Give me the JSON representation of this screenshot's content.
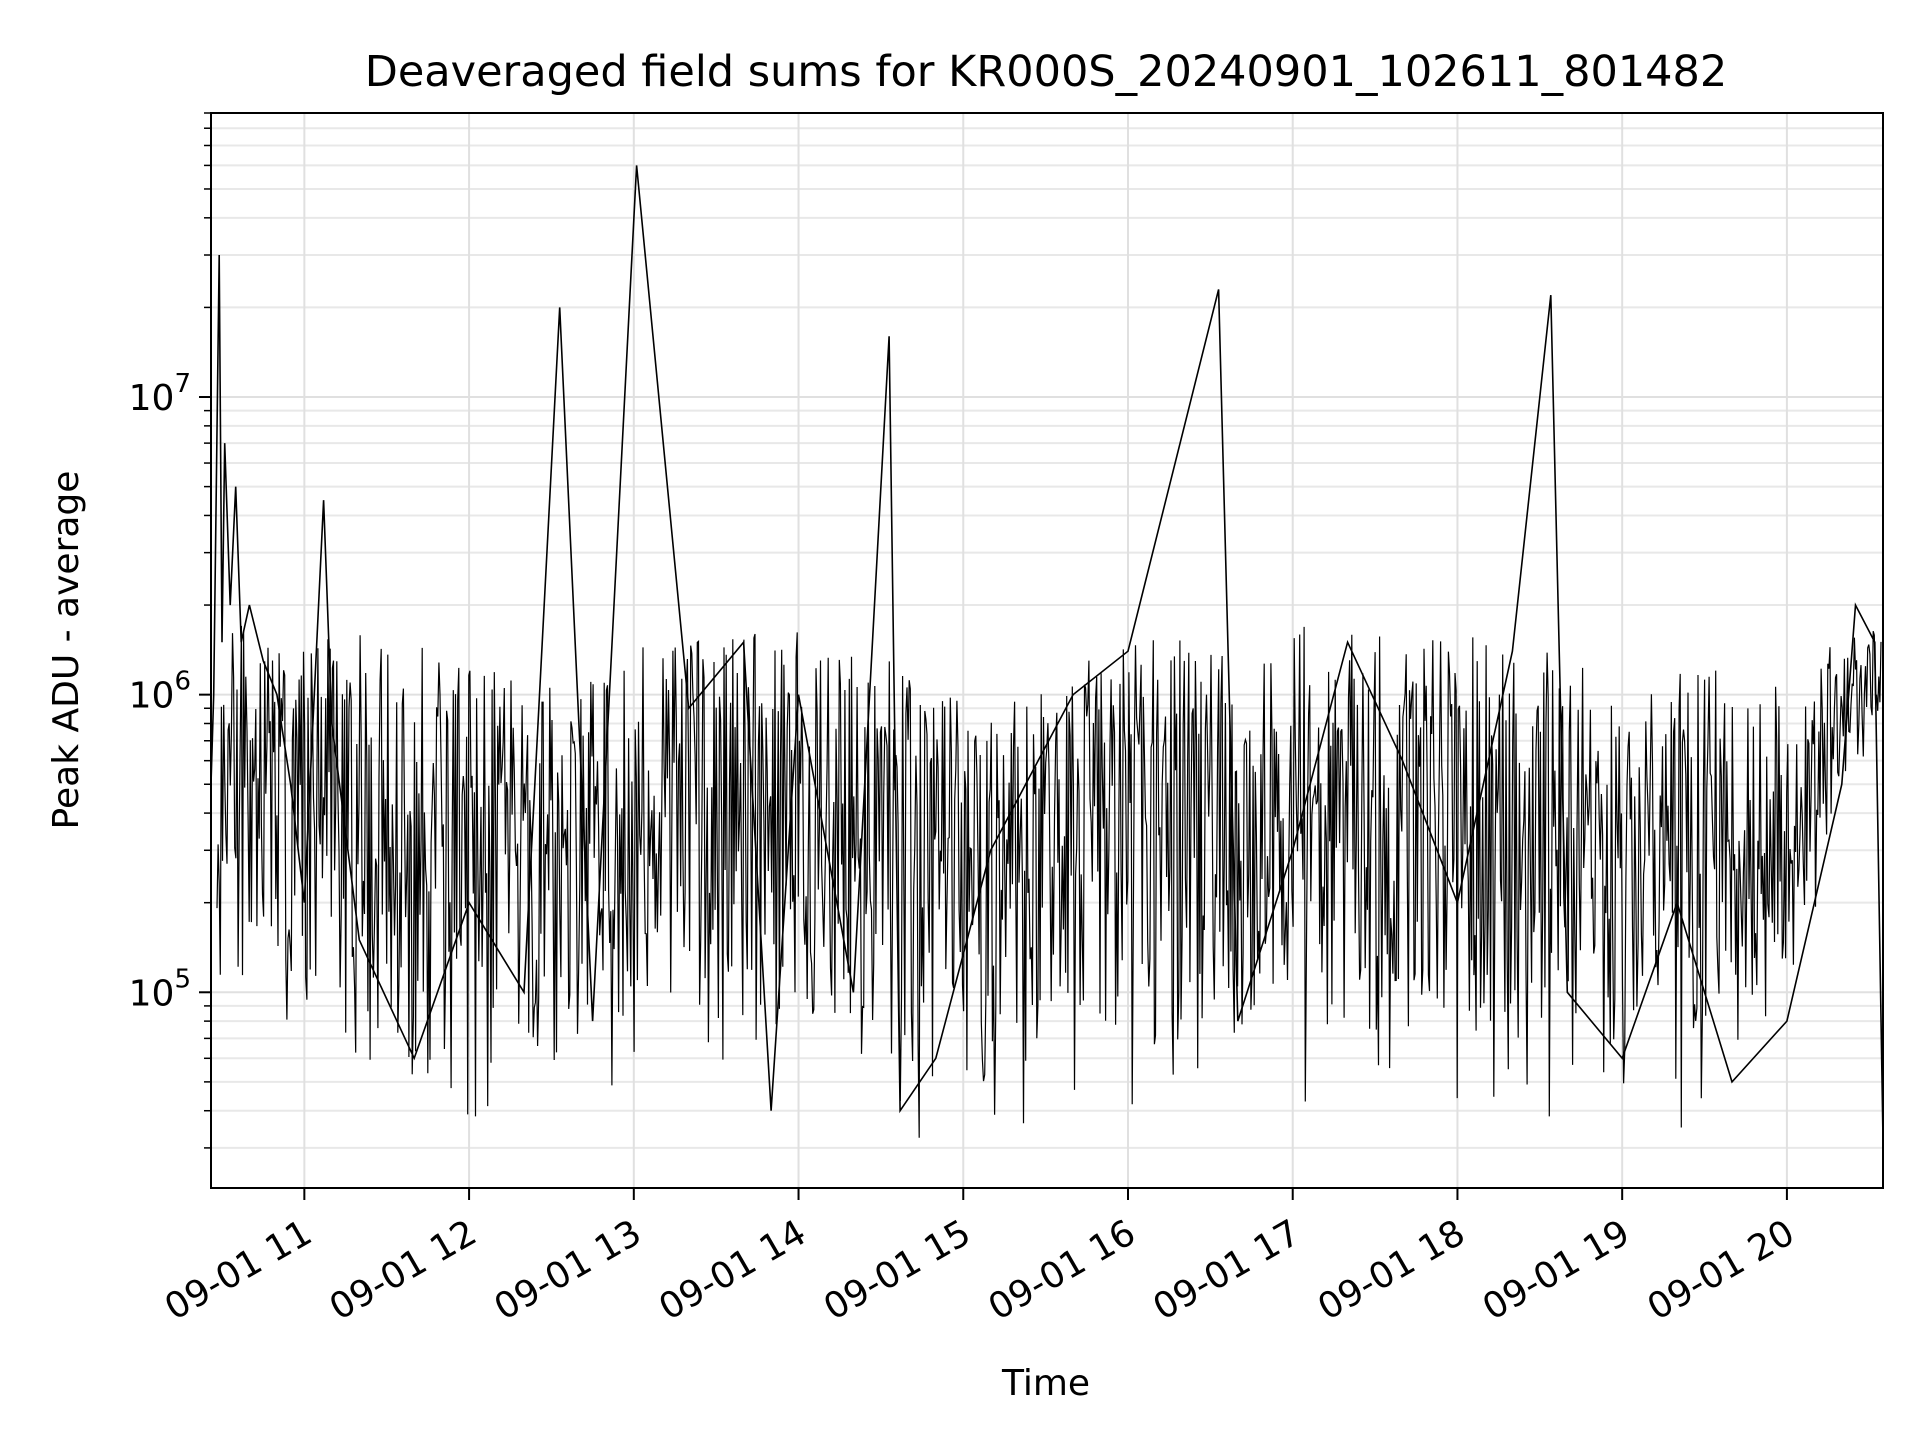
{
  "chart_data": {
    "type": "line",
    "title": "Deaveraged field sums for KR000S_20240901_102611_801482",
    "xlabel": "Time",
    "ylabel": "Peak ADU - average",
    "xlim": [
      "2024-09-01 10:26",
      "2024-09-01 20:35"
    ],
    "ylim": [
      22000,
      90000000
    ],
    "yscale": "log",
    "grid": true,
    "line_color": "#000000",
    "x_ticks": [
      {
        "value": "2024-09-01 11:00",
        "label": "09-01 11"
      },
      {
        "value": "2024-09-01 12:00",
        "label": "09-01 12"
      },
      {
        "value": "2024-09-01 13:00",
        "label": "09-01 13"
      },
      {
        "value": "2024-09-01 14:00",
        "label": "09-01 14"
      },
      {
        "value": "2024-09-01 15:00",
        "label": "09-01 15"
      },
      {
        "value": "2024-09-01 16:00",
        "label": "09-01 16"
      },
      {
        "value": "2024-09-01 17:00",
        "label": "09-01 17"
      },
      {
        "value": "2024-09-01 18:00",
        "label": "09-01 18"
      },
      {
        "value": "2024-09-01 19:00",
        "label": "09-01 19"
      },
      {
        "value": "2024-09-01 20:00",
        "label": "09-01 20"
      }
    ],
    "y_ticks": [
      {
        "value": 100000,
        "base": "10",
        "exp": "5"
      },
      {
        "value": 1000000,
        "base": "10",
        "exp": "6"
      },
      {
        "value": 10000000,
        "base": "10",
        "exp": "7"
      }
    ],
    "series": [
      {
        "points": [
          [
            "2024-09-01 10:26",
            500000
          ],
          [
            "2024-09-01 10:27",
            1000000
          ],
          [
            "2024-09-01 10:29",
            30000000
          ],
          [
            "2024-09-01 10:30",
            1500000
          ],
          [
            "2024-09-01 10:31",
            7000000
          ],
          [
            "2024-09-01 10:33",
            2000000
          ],
          [
            "2024-09-01 10:35",
            5000000
          ],
          [
            "2024-09-01 10:37",
            1500000
          ],
          [
            "2024-09-01 10:40",
            2000000
          ],
          [
            "2024-09-01 10:45",
            1300000
          ],
          [
            "2024-09-01 10:50",
            1000000
          ],
          [
            "2024-09-01 10:55",
            500000
          ],
          [
            "2024-09-01 11:00",
            200000
          ],
          [
            "2024-09-01 11:07",
            4500000
          ],
          [
            "2024-09-01 11:10",
            800000
          ],
          [
            "2024-09-01 11:20",
            150000
          ],
          [
            "2024-09-01 11:40",
            60000
          ],
          [
            "2024-09-01 12:00",
            200000
          ],
          [
            "2024-09-01 12:20",
            100000
          ],
          [
            "2024-09-01 12:33",
            20000000
          ],
          [
            "2024-09-01 12:45",
            80000
          ],
          [
            "2024-09-01 13:01",
            60000000
          ],
          [
            "2024-09-01 13:20",
            900000
          ],
          [
            "2024-09-01 13:40",
            1500000
          ],
          [
            "2024-09-01 13:50",
            40000
          ],
          [
            "2024-09-01 14:00",
            1000000
          ],
          [
            "2024-09-01 14:20",
            100000
          ],
          [
            "2024-09-01 14:33",
            16000000
          ],
          [
            "2024-09-01 14:37",
            40000
          ],
          [
            "2024-09-01 14:50",
            60000
          ],
          [
            "2024-09-01 15:10",
            300000
          ],
          [
            "2024-09-01 15:40",
            1000000
          ],
          [
            "2024-09-01 16:00",
            1400000
          ],
          [
            "2024-09-01 16:33",
            23000000
          ],
          [
            "2024-09-01 16:40",
            80000
          ],
          [
            "2024-09-01 17:00",
            300000
          ],
          [
            "2024-09-01 17:20",
            1500000
          ],
          [
            "2024-09-01 17:40",
            600000
          ],
          [
            "2024-09-01 18:00",
            200000
          ],
          [
            "2024-09-01 18:20",
            1400000
          ],
          [
            "2024-09-01 18:34",
            22000000
          ],
          [
            "2024-09-01 18:40",
            100000
          ],
          [
            "2024-09-01 19:00",
            60000
          ],
          [
            "2024-09-01 19:20",
            200000
          ],
          [
            "2024-09-01 19:40",
            50000
          ],
          [
            "2024-09-01 20:00",
            80000
          ],
          [
            "2024-09-01 20:10",
            200000
          ],
          [
            "2024-09-01 20:20",
            500000
          ],
          [
            "2024-09-01 20:25",
            2000000
          ],
          [
            "2024-09-01 20:32",
            1500000
          ],
          [
            "2024-09-01 20:35",
            32000
          ]
        ]
      }
    ]
  }
}
